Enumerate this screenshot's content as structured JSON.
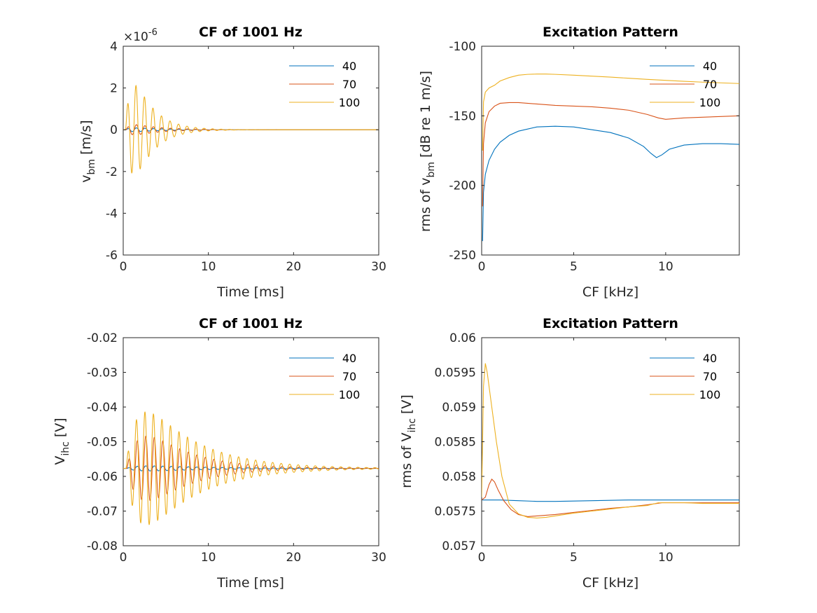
{
  "colors": {
    "axis": "#262626",
    "s40": "#0072BD",
    "s70": "#D95319",
    "s100": "#EDB120"
  },
  "chart_data": [
    {
      "type": "line",
      "title": "CF of 1001 Hz",
      "xlabel": "Time [ms]",
      "ylabel_main": "v",
      "ylabel_sub": "bm",
      "ylabel_suffix": "  [m/s]",
      "multiplier_prefix": "×10",
      "multiplier_exp": "-6",
      "xlim": [
        0,
        30
      ],
      "ylim": [
        -6,
        4
      ],
      "xticks": [
        0,
        10,
        20,
        30
      ],
      "xticklabels": [
        "0",
        "10",
        "20",
        "30"
      ],
      "yticks": [
        -6,
        -4,
        -2,
        0,
        2,
        4
      ],
      "yticklabels": [
        "-6",
        "-4",
        "-2",
        "0",
        "2",
        "4"
      ],
      "legend": [
        "40",
        "70",
        "100"
      ],
      "series": [
        {
          "name": "40",
          "model": "osc",
          "params": {
            "base": 0,
            "amp": 0.14,
            "t0": 0.3,
            "onset": 0.5,
            "tau": 3.5,
            "period": 1.0
          }
        },
        {
          "name": "70",
          "model": "osc",
          "params": {
            "base": 0,
            "amp": 0.42,
            "t0": 0.3,
            "onset": 0.6,
            "tau": 3.0,
            "period": 1.0
          }
        },
        {
          "name": "100",
          "model": "osc",
          "params": {
            "base": 0,
            "amp": 4.6,
            "t0": 0.25,
            "onset": 0.75,
            "tau": 2.2,
            "period": 1.0
          }
        }
      ]
    },
    {
      "type": "line",
      "title": "Excitation Pattern",
      "xlabel": "CF [kHz]",
      "ylabel_main": "rms of v",
      "ylabel_sub": "bm",
      "ylabel_suffix": " [dB re 1 m/s]",
      "xlim": [
        0,
        14
      ],
      "ylim": [
        -250,
        -100
      ],
      "xticks": [
        0,
        5,
        10
      ],
      "xticklabels": [
        "0",
        "5",
        "10"
      ],
      "yticks": [
        -250,
        -200,
        -150,
        -100
      ],
      "yticklabels": [
        "-250",
        "-200",
        "-150",
        "-100"
      ],
      "legend": [
        "40",
        "70",
        "100"
      ],
      "series": [
        {
          "name": "40",
          "x": [
            0.05,
            0.1,
            0.2,
            0.4,
            0.7,
            1.0,
            1.5,
            2.0,
            3.0,
            4.0,
            5.0,
            6.0,
            7.0,
            8.0,
            8.8,
            9.2,
            9.5,
            9.8,
            10.2,
            11.0,
            12.0,
            13.0,
            14.0
          ],
          "y": [
            -240,
            -205,
            -192,
            -182,
            -174,
            -169,
            -164,
            -161,
            -158,
            -157.5,
            -158,
            -160,
            -162,
            -166,
            -172,
            -177,
            -180,
            -178,
            -174,
            -171,
            -170,
            -170,
            -170.5
          ]
        },
        {
          "name": "70",
          "x": [
            0.05,
            0.1,
            0.2,
            0.4,
            0.7,
            1.0,
            1.5,
            2.0,
            3.0,
            4.0,
            5.0,
            6.0,
            7.0,
            8.0,
            9.0,
            9.6,
            10.0,
            10.5,
            11.0,
            12.0,
            13.0,
            14.0
          ],
          "y": [
            -215,
            -170,
            -155,
            -147,
            -143,
            -141,
            -140.5,
            -140.5,
            -141.5,
            -142.5,
            -143,
            -143.5,
            -144.5,
            -146,
            -149,
            -151.5,
            -152.5,
            -152,
            -151.5,
            -151,
            -150.5,
            -150
          ]
        },
        {
          "name": "100",
          "x": [
            0.05,
            0.1,
            0.2,
            0.4,
            0.7,
            1.0,
            1.5,
            2.0,
            2.5,
            3.0,
            3.5,
            4.0,
            5.0,
            6.0,
            7.0,
            8.0,
            9.0,
            10.0,
            11.0,
            12.0,
            13.0,
            14.0
          ],
          "y": [
            -175,
            -140,
            -133,
            -130,
            -128,
            -125,
            -122.5,
            -120.8,
            -120.2,
            -120,
            -120,
            -120.2,
            -120.8,
            -121.5,
            -122.2,
            -123,
            -123.8,
            -124.5,
            -125.2,
            -125.8,
            -126.3,
            -126.8
          ]
        }
      ]
    },
    {
      "type": "line",
      "title": "CF of 1001 Hz",
      "xlabel": "Time [ms]",
      "ylabel_main": "V",
      "ylabel_sub": "ihc",
      "ylabel_suffix": " [V]",
      "xlim": [
        0,
        30
      ],
      "ylim": [
        -0.08,
        -0.02
      ],
      "xticks": [
        0,
        10,
        20,
        30
      ],
      "xticklabels": [
        "0",
        "10",
        "20",
        "30"
      ],
      "yticks": [
        -0.08,
        -0.07,
        -0.06,
        -0.05,
        -0.04,
        -0.03,
        -0.02
      ],
      "yticklabels": [
        "-0.08",
        "-0.07",
        "-0.06",
        "-0.05",
        "-0.04",
        "-0.03",
        "-0.02"
      ],
      "legend": [
        "40",
        "70",
        "100"
      ],
      "series": [
        {
          "name": "40",
          "model": "osc",
          "params": {
            "base": -0.0577,
            "amp": 0.0013,
            "t0": 0.4,
            "onset": 1.5,
            "tau": 7.0,
            "period": 1.0
          }
        },
        {
          "name": "70",
          "model": "osc",
          "params": {
            "base": -0.0577,
            "amp": 0.0205,
            "t0": 0.4,
            "onset": 1.8,
            "tau": 5.0,
            "period": 1.0
          }
        },
        {
          "name": "100",
          "model": "osc",
          "params": {
            "base": -0.0577,
            "amp": 0.0305,
            "t0": 0.3,
            "onset": 1.5,
            "tau": 6.0,
            "period": 1.0
          }
        }
      ]
    },
    {
      "type": "line",
      "title": "Excitation Pattern",
      "xlabel": "CF [kHz]",
      "ylabel_main": "rms of V",
      "ylabel_sub": "ihc",
      "ylabel_suffix": " [V]",
      "xlim": [
        0,
        14
      ],
      "ylim": [
        0.057,
        0.06
      ],
      "xticks": [
        0,
        5,
        10
      ],
      "xticklabels": [
        "0",
        "5",
        "10"
      ],
      "yticks": [
        0.057,
        0.0575,
        0.058,
        0.0585,
        0.059,
        0.0595,
        0.06
      ],
      "yticklabels": [
        "0.057",
        "0.0575",
        "0.058",
        "0.0585",
        "0.059",
        "0.0595",
        "0.06"
      ],
      "legend": [
        "40",
        "70",
        "100"
      ],
      "series": [
        {
          "name": "40",
          "x": [
            0,
            0.5,
            1.0,
            2.0,
            3.0,
            4.0,
            6.0,
            8.0,
            10.0,
            12.0,
            14.0
          ],
          "y": [
            0.05766,
            0.05766,
            0.05766,
            0.05765,
            0.05764,
            0.05764,
            0.05765,
            0.05766,
            0.05766,
            0.05766,
            0.05766
          ]
        },
        {
          "name": "70",
          "x": [
            0,
            0.2,
            0.4,
            0.55,
            0.7,
            0.9,
            1.2,
            1.6,
            2.0,
            2.5,
            3.0,
            4.0,
            5.0,
            6.0,
            7.0,
            8.0,
            9.0,
            9.8,
            10.5,
            12.0,
            14.0
          ],
          "y": [
            0.05766,
            0.0577,
            0.05788,
            0.05796,
            0.05792,
            0.0578,
            0.05765,
            0.05752,
            0.05745,
            0.05742,
            0.05743,
            0.05745,
            0.05748,
            0.05751,
            0.05754,
            0.05756,
            0.05759,
            0.05762,
            0.05762,
            0.05762,
            0.05762
          ]
        },
        {
          "name": "100",
          "x": [
            0,
            0.1,
            0.2,
            0.3,
            0.5,
            0.8,
            1.1,
            1.5,
            2.0,
            2.5,
            3.0,
            3.5,
            4.0,
            5.0,
            6.0,
            7.0,
            8.0,
            9.0,
            9.6,
            10.2,
            11.0,
            12.0,
            14.0
          ],
          "y": [
            0.0577,
            0.0593,
            0.05963,
            0.0595,
            0.0591,
            0.0585,
            0.058,
            0.0576,
            0.05746,
            0.05741,
            0.0574,
            0.05741,
            0.05743,
            0.05747,
            0.0575,
            0.05753,
            0.05756,
            0.05758,
            0.05762,
            0.05762,
            0.05762,
            0.05761,
            0.05761
          ]
        }
      ]
    }
  ]
}
